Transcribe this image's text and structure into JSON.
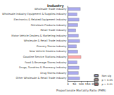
{
  "chart_data": {
    "type": "bar",
    "orientation": "horizontal",
    "stacked": true,
    "title": "Industry",
    "xlabel": "Proportionate Mortality Ratio (PMR)",
    "categories": [
      "Wholesale Trade Industry",
      "Wholesale-Industry Equipment & Supplies Industry",
      "Electronics & Related Equipment Industry",
      "Petroleum Products Industry",
      "Retail Trade Industry",
      "Motor Vehicle Dealers & Marketing Industry",
      "Wholesale & Retail Trade Industry",
      "Grocery Stores Industry",
      "New Vehicle Dealers Industry",
      "Gasoline Service Stations Industry",
      "Food & Beverage Stores Industry",
      "Drugs, Sundries & Pharmacy Industry",
      "Drug Stores Industry",
      "Other Wholesale & Retail Trade Industry"
    ],
    "series": [
      {
        "name": "Non-sig",
        "color": "#aaaaee",
        "values": [
          95,
          70,
          85,
          75,
          60,
          80,
          90,
          65,
          75,
          null,
          70,
          85,
          80,
          90
        ]
      },
      {
        "name": "p < 0.05",
        "color": "#ffaaaa",
        "values": [
          null,
          null,
          null,
          null,
          null,
          null,
          null,
          null,
          null,
          100,
          null,
          null,
          null,
          null
        ]
      },
      {
        "name": "p < 0.01",
        "color": "#ff4444",
        "values": [
          null,
          null,
          null,
          null,
          null,
          null,
          null,
          null,
          null,
          null,
          null,
          null,
          null,
          null
        ]
      }
    ],
    "xlim": [
      0,
      200
    ],
    "xticks": [
      0,
      50,
      100,
      150,
      200
    ],
    "legend": "bottom-right",
    "grid": false
  }
}
